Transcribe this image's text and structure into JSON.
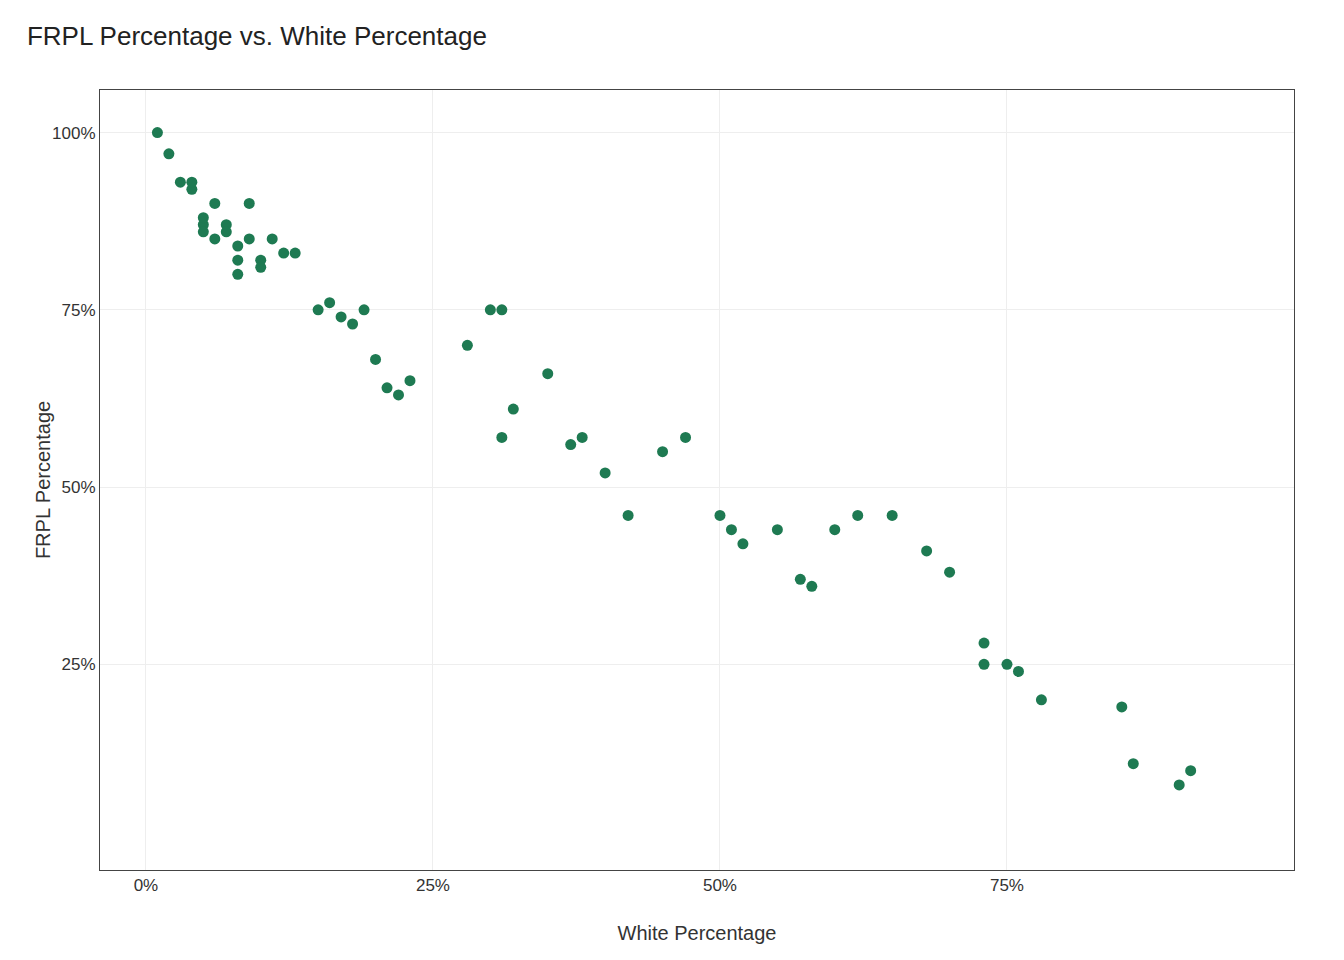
{
  "chart_data": {
    "type": "scatter",
    "title": "FRPL Percentage vs. White Percentage",
    "xlabel": "White Percentage",
    "ylabel": "FRPL Percentage",
    "color": "#1e7a52",
    "grid": true,
    "xlim": [
      -0.04,
      1.0
    ],
    "ylim": [
      -0.04,
      1.06
    ],
    "xticks": [
      {
        "value": 0.0,
        "label": "0%"
      },
      {
        "value": 0.25,
        "label": "25%"
      },
      {
        "value": 0.5,
        "label": "50%"
      },
      {
        "value": 0.75,
        "label": "75%"
      }
    ],
    "yticks": [
      {
        "value": 0.25,
        "label": "25%"
      },
      {
        "value": 0.5,
        "label": "50%"
      },
      {
        "value": 0.75,
        "label": "75%"
      },
      {
        "value": 1.0,
        "label": "100%"
      }
    ],
    "x": [
      0.01,
      0.02,
      0.03,
      0.04,
      0.04,
      0.05,
      0.05,
      0.05,
      0.06,
      0.06,
      0.07,
      0.07,
      0.08,
      0.08,
      0.08,
      0.09,
      0.09,
      0.1,
      0.1,
      0.11,
      0.12,
      0.13,
      0.15,
      0.16,
      0.17,
      0.18,
      0.19,
      0.2,
      0.21,
      0.22,
      0.23,
      0.28,
      0.3,
      0.31,
      0.31,
      0.32,
      0.35,
      0.37,
      0.38,
      0.4,
      0.42,
      0.45,
      0.47,
      0.5,
      0.51,
      0.52,
      0.55,
      0.57,
      0.58,
      0.6,
      0.62,
      0.65,
      0.68,
      0.7,
      0.73,
      0.73,
      0.75,
      0.76,
      0.78,
      0.85,
      0.86,
      0.9,
      0.91
    ],
    "values": [
      1.0,
      0.97,
      0.93,
      0.92,
      0.93,
      0.87,
      0.86,
      0.88,
      0.85,
      0.9,
      0.87,
      0.86,
      0.84,
      0.82,
      0.8,
      0.85,
      0.9,
      0.82,
      0.81,
      0.85,
      0.83,
      0.83,
      0.75,
      0.76,
      0.74,
      0.73,
      0.75,
      0.68,
      0.64,
      0.63,
      0.65,
      0.7,
      0.75,
      0.75,
      0.57,
      0.61,
      0.66,
      0.56,
      0.57,
      0.52,
      0.46,
      0.55,
      0.57,
      0.46,
      0.44,
      0.42,
      0.44,
      0.37,
      0.36,
      0.44,
      0.46,
      0.46,
      0.41,
      0.38,
      0.28,
      0.25,
      0.25,
      0.24,
      0.2,
      0.19,
      0.11,
      0.08,
      0.1
    ]
  }
}
